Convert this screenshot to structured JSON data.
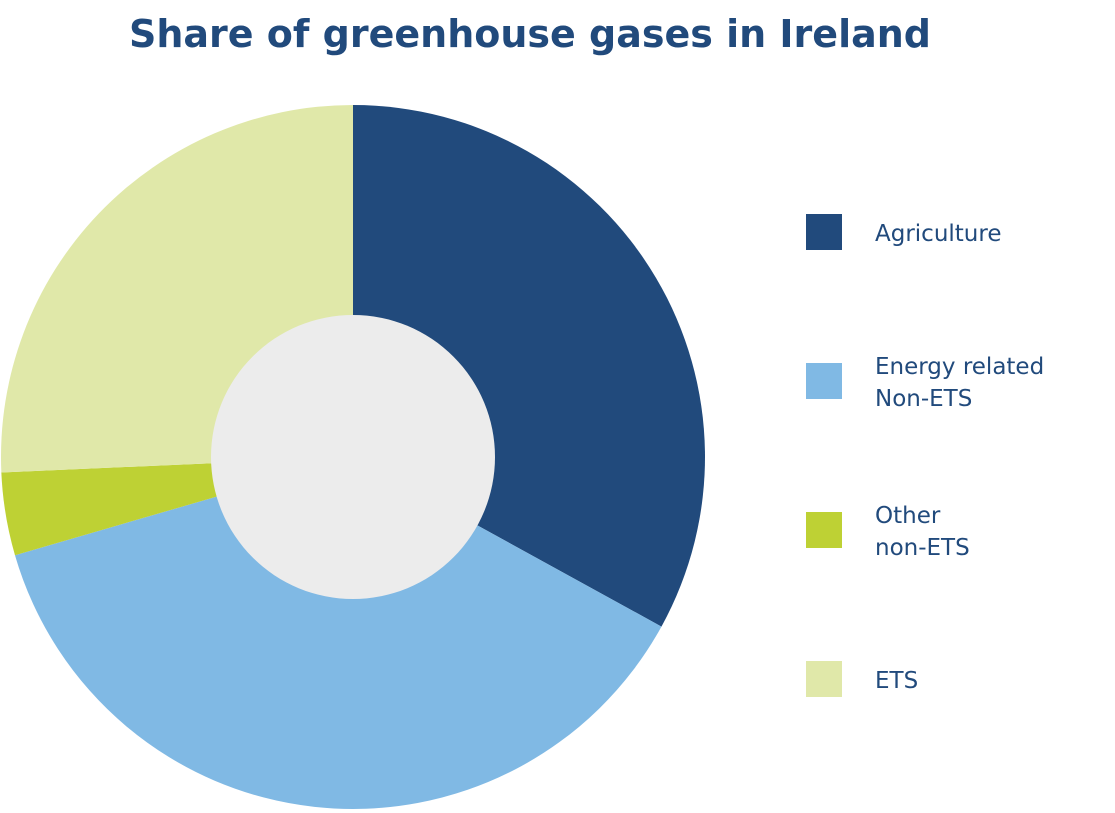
{
  "chart_data": {
    "type": "pie",
    "title": "Share of greenhouse gases in Ireland",
    "categories": [
      "Agriculture",
      "Energy related\nNon-ETS",
      "Other\nnon-ETS",
      "ETS"
    ],
    "values": [
      33,
      37.5,
      3.8,
      25.7
    ],
    "colors": [
      "#214a7c",
      "#80b9e4",
      "#bed134",
      "#e0e8a9"
    ],
    "legend": "right"
  }
}
